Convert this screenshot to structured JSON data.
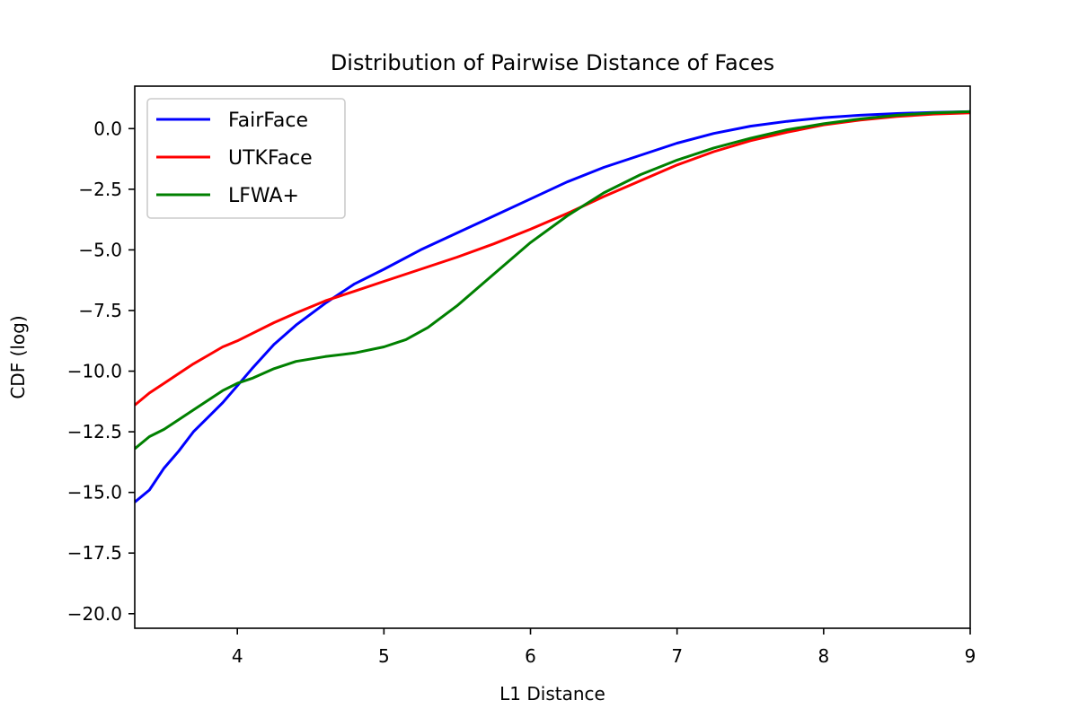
{
  "figure": {
    "background": "#ffffff"
  },
  "chart_data": {
    "type": "line",
    "title": "Distribution of Pairwise Distance of Faces",
    "xlabel": "L1 Distance",
    "ylabel": "CDF (log)",
    "xlim": [
      3.3,
      9.0
    ],
    "ylim": [
      -20.6,
      1.75
    ],
    "xticks": [
      4,
      5,
      6,
      7,
      8,
      9
    ],
    "xtick_labels": [
      "4",
      "5",
      "6",
      "7",
      "8",
      "9"
    ],
    "yticks": [
      0.0,
      -2.5,
      -5.0,
      -7.5,
      -10.0,
      -12.5,
      -15.0,
      -17.5,
      -20.0
    ],
    "ytick_labels": [
      "0.0",
      "−2.5",
      "−5.0",
      "−7.5",
      "−10.0",
      "−12.5",
      "−15.0",
      "−17.5",
      "−20.0"
    ],
    "grid": false,
    "legend_position": "upper left",
    "series": [
      {
        "name": "FairFace",
        "color": "#0000ff",
        "x": [
          3.3,
          3.4,
          3.5,
          3.6,
          3.7,
          3.8,
          3.9,
          4.0,
          4.1,
          4.25,
          4.4,
          4.6,
          4.8,
          5.0,
          5.25,
          5.5,
          5.75,
          6.0,
          6.25,
          6.5,
          6.75,
          7.0,
          7.25,
          7.5,
          7.75,
          8.0,
          8.25,
          8.5,
          8.75,
          9.0
        ],
        "y": [
          -15.4,
          -14.9,
          -14.0,
          -13.3,
          -12.5,
          -11.9,
          -11.3,
          -10.6,
          -9.9,
          -8.9,
          -8.1,
          -7.2,
          -6.4,
          -5.8,
          -5.0,
          -4.3,
          -3.6,
          -2.9,
          -2.2,
          -1.6,
          -1.1,
          -0.6,
          -0.2,
          0.1,
          0.3,
          0.45,
          0.55,
          0.62,
          0.67,
          0.7
        ]
      },
      {
        "name": "UTKFace",
        "color": "#ff0000",
        "x": [
          3.3,
          3.4,
          3.5,
          3.6,
          3.7,
          3.8,
          3.9,
          4.0,
          4.1,
          4.25,
          4.4,
          4.6,
          4.8,
          5.0,
          5.25,
          5.5,
          5.75,
          6.0,
          6.25,
          6.5,
          6.75,
          7.0,
          7.25,
          7.5,
          7.75,
          8.0,
          8.25,
          8.5,
          8.75,
          9.0
        ],
        "y": [
          -11.4,
          -10.9,
          -10.5,
          -10.1,
          -9.7,
          -9.35,
          -9.0,
          -8.75,
          -8.45,
          -8.0,
          -7.6,
          -7.1,
          -6.7,
          -6.3,
          -5.8,
          -5.3,
          -4.75,
          -4.15,
          -3.5,
          -2.8,
          -2.15,
          -1.5,
          -0.95,
          -0.5,
          -0.15,
          0.15,
          0.35,
          0.5,
          0.6,
          0.65
        ]
      },
      {
        "name": "LFWA+",
        "color": "#008000",
        "x": [
          3.3,
          3.4,
          3.5,
          3.6,
          3.7,
          3.8,
          3.9,
          4.0,
          4.1,
          4.25,
          4.4,
          4.6,
          4.8,
          5.0,
          5.15,
          5.3,
          5.5,
          5.75,
          6.0,
          6.25,
          6.5,
          6.75,
          7.0,
          7.25,
          7.5,
          7.75,
          8.0,
          8.25,
          8.5,
          8.75,
          9.0
        ],
        "y": [
          -13.2,
          -12.7,
          -12.4,
          -12.0,
          -11.6,
          -11.2,
          -10.8,
          -10.5,
          -10.3,
          -9.9,
          -9.6,
          -9.4,
          -9.25,
          -9.0,
          -8.7,
          -8.2,
          -7.3,
          -6.0,
          -4.7,
          -3.6,
          -2.65,
          -1.9,
          -1.3,
          -0.8,
          -0.4,
          -0.05,
          0.2,
          0.4,
          0.55,
          0.65,
          0.7
        ]
      }
    ]
  }
}
